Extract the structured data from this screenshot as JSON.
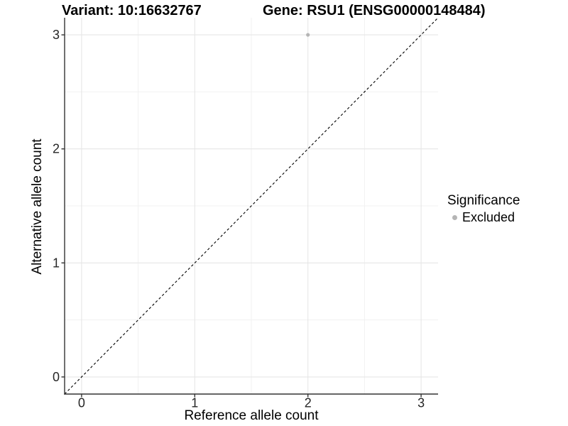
{
  "chart_data": {
    "type": "scatter",
    "title_left": "Variant: 10:16632767",
    "title_right": "Gene: RSU1 (ENSG00000148484)",
    "xlabel": "Reference allele count",
    "ylabel": "Alternative allele count",
    "xlim": [
      -0.15,
      3.15
    ],
    "ylim": [
      -0.15,
      3.15
    ],
    "xticks": [
      0,
      1,
      2,
      3
    ],
    "yticks": [
      0,
      1,
      2,
      3
    ],
    "minor_ticks": [
      0.5,
      1.5,
      2.5
    ],
    "grid": true,
    "identity_line": {
      "equation": "y = x",
      "style": "dashed",
      "color": "#000000"
    },
    "series": [
      {
        "name": "Excluded",
        "color": "#b5b5b5",
        "points": [
          {
            "x": 2,
            "y": 3
          }
        ]
      }
    ],
    "legend": {
      "position": "right",
      "title": "Significance",
      "items": [
        {
          "label": "Excluded",
          "color": "#b5b5b5"
        }
      ]
    },
    "colors": {
      "background": "#ffffff",
      "grid_major": "#e6e6e6",
      "grid_minor": "#f1f1f1",
      "axis": "#333333",
      "tick_label": "#262626"
    }
  }
}
